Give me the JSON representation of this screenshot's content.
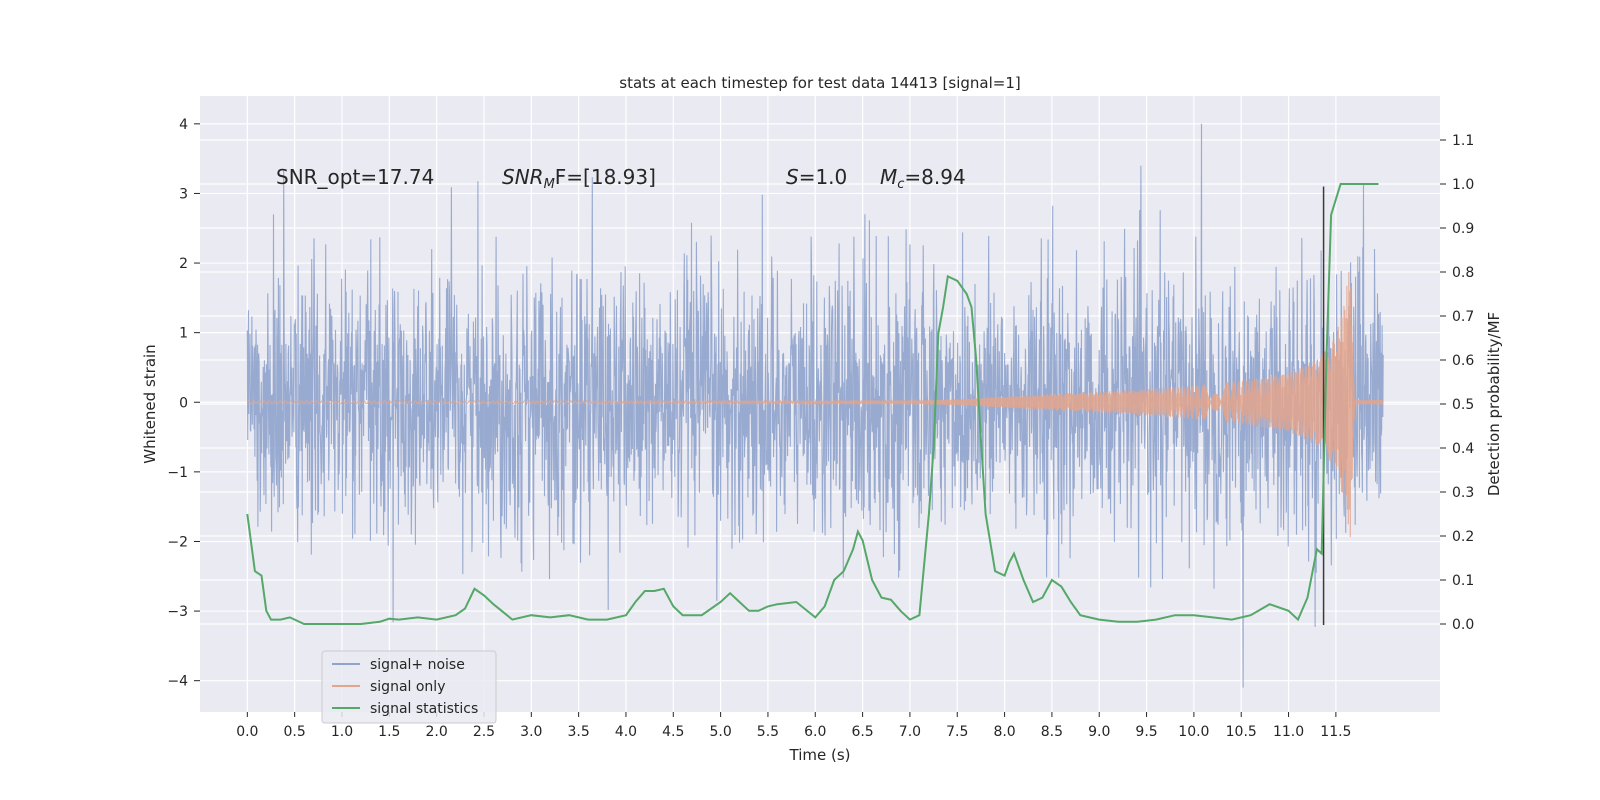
{
  "chart_data": {
    "type": "line",
    "title": "stats at each timestep for test data 14413 [signal=1]",
    "xlabel": "Time (s)",
    "ylabel_left": "Whitened strain",
    "ylabel_right": "Detection probability/MF",
    "xlim": [
      -0.5,
      12.6
    ],
    "ylim_left": [
      -4.45,
      4.4
    ],
    "ylim_right": [
      -0.2,
      1.2
    ],
    "x_ticks": [
      0.0,
      0.5,
      1.0,
      1.5,
      2.0,
      2.5,
      3.0,
      3.5,
      4.0,
      4.5,
      5.0,
      5.5,
      6.0,
      6.5,
      7.0,
      7.5,
      8.0,
      8.5,
      9.0,
      9.5,
      10.0,
      10.5,
      11.0,
      11.5
    ],
    "x_tick_labels": [
      "0.0",
      "0.5",
      "1.0",
      "1.5",
      "2.0",
      "2.5",
      "3.0",
      "3.5",
      "4.0",
      "4.5",
      "5.0",
      "5.5",
      "6.0",
      "6.5",
      "7.0",
      "7.5",
      "8.0",
      "8.5",
      "9.0",
      "9.5",
      "10.0",
      "10.5",
      "11.0",
      "11.5"
    ],
    "left_ticks": [
      -4,
      -3,
      -2,
      -1,
      0,
      1,
      2,
      3,
      4
    ],
    "left_tick_labels": [
      "−4",
      "−3",
      "−2",
      "−1",
      "0",
      "1",
      "2",
      "3",
      "4"
    ],
    "right_ticks": [
      0.0,
      0.1,
      0.2,
      0.3,
      0.4,
      0.5,
      0.6,
      0.7,
      0.8,
      0.9,
      1.0,
      1.1
    ],
    "right_tick_labels": [
      "0.0",
      "0.1",
      "0.2",
      "0.3",
      "0.4",
      "0.5",
      "0.6",
      "0.7",
      "0.8",
      "0.9",
      "1.0",
      "1.1"
    ],
    "annotations": {
      "snr_opt": "SNR_opt=17.74",
      "snr_mf_main": "SNR",
      "snr_mf_sub": "M",
      "snr_mf_rest": "F=[18.93]",
      "s_symbol": "S",
      "s_value": "=1.0",
      "mc_symbol": "M",
      "mc_sub": "c",
      "mc_value": "=8.94"
    },
    "legend": [
      {
        "label": "signal+ noise",
        "color": "#8fa3cc"
      },
      {
        "label": "signal only",
        "color": "#e3a58c"
      },
      {
        "label": "signal statistics",
        "color": "#55a868"
      }
    ],
    "series": [
      {
        "name": "signal+ noise",
        "axis": "left",
        "color": "#8fa3cc",
        "description_kind": "noise band",
        "t_start": 0.0,
        "t_end": 12.0,
        "typical_amplitude": 1.9,
        "max_excursion": 4.0,
        "min_excursion": -4.1
      },
      {
        "name": "signal only",
        "axis": "left",
        "color": "#e3a58c",
        "description_kind": "chirp envelope",
        "envelope": {
          "t": [
            0.0,
            7.0,
            7.5,
            8.0,
            8.5,
            9.0,
            9.5,
            10.0,
            10.5,
            11.0,
            11.3,
            11.5,
            11.6,
            11.65,
            11.7,
            12.0
          ],
          "amp": [
            0.02,
            0.02,
            0.04,
            0.08,
            0.12,
            0.15,
            0.19,
            0.24,
            0.31,
            0.42,
            0.62,
            0.95,
            1.5,
            2.05,
            0.03,
            0.03
          ]
        }
      },
      {
        "name": "signal statistics",
        "axis": "right",
        "color": "#55a868",
        "x": [
          0.0,
          0.08,
          0.15,
          0.2,
          0.25,
          0.35,
          0.45,
          0.5,
          0.6,
          0.7,
          0.8,
          1.0,
          1.2,
          1.4,
          1.5,
          1.6,
          1.8,
          2.0,
          2.2,
          2.3,
          2.4,
          2.5,
          2.6,
          2.8,
          3.0,
          3.2,
          3.4,
          3.6,
          3.8,
          4.0,
          4.1,
          4.2,
          4.3,
          4.4,
          4.5,
          4.6,
          4.8,
          5.0,
          5.1,
          5.2,
          5.3,
          5.4,
          5.5,
          5.6,
          5.8,
          6.0,
          6.1,
          6.2,
          6.3,
          6.4,
          6.45,
          6.5,
          6.6,
          6.7,
          6.8,
          6.9,
          7.0,
          7.1,
          7.2,
          7.25,
          7.3,
          7.35,
          7.4,
          7.5,
          7.6,
          7.65,
          7.7,
          7.75,
          7.8,
          7.9,
          8.0,
          8.05,
          8.1,
          8.2,
          8.3,
          8.4,
          8.5,
          8.6,
          8.7,
          8.8,
          9.0,
          9.2,
          9.4,
          9.6,
          9.8,
          10.0,
          10.2,
          10.4,
          10.6,
          10.8,
          11.0,
          11.1,
          11.2,
          11.3,
          11.35,
          11.4,
          11.45,
          11.55,
          11.65,
          11.8,
          11.95
        ],
        "y": [
          0.25,
          0.12,
          0.11,
          0.03,
          0.01,
          0.01,
          0.015,
          0.01,
          0.0,
          0.0,
          0.0,
          0.0,
          0.0,
          0.005,
          0.012,
          0.01,
          0.015,
          0.01,
          0.02,
          0.035,
          0.08,
          0.065,
          0.045,
          0.01,
          0.02,
          0.015,
          0.02,
          0.01,
          0.01,
          0.02,
          0.05,
          0.075,
          0.075,
          0.08,
          0.04,
          0.02,
          0.02,
          0.05,
          0.07,
          0.05,
          0.03,
          0.03,
          0.04,
          0.045,
          0.05,
          0.015,
          0.04,
          0.1,
          0.12,
          0.17,
          0.21,
          0.19,
          0.1,
          0.06,
          0.055,
          0.03,
          0.01,
          0.02,
          0.25,
          0.4,
          0.66,
          0.72,
          0.79,
          0.78,
          0.75,
          0.72,
          0.6,
          0.42,
          0.25,
          0.12,
          0.11,
          0.14,
          0.16,
          0.1,
          0.05,
          0.06,
          0.1,
          0.085,
          0.05,
          0.02,
          0.01,
          0.005,
          0.005,
          0.01,
          0.02,
          0.02,
          0.015,
          0.01,
          0.02,
          0.045,
          0.03,
          0.01,
          0.06,
          0.17,
          0.16,
          0.6,
          0.93,
          1.0,
          1.0,
          1.0,
          1.0
        ]
      }
    ]
  }
}
